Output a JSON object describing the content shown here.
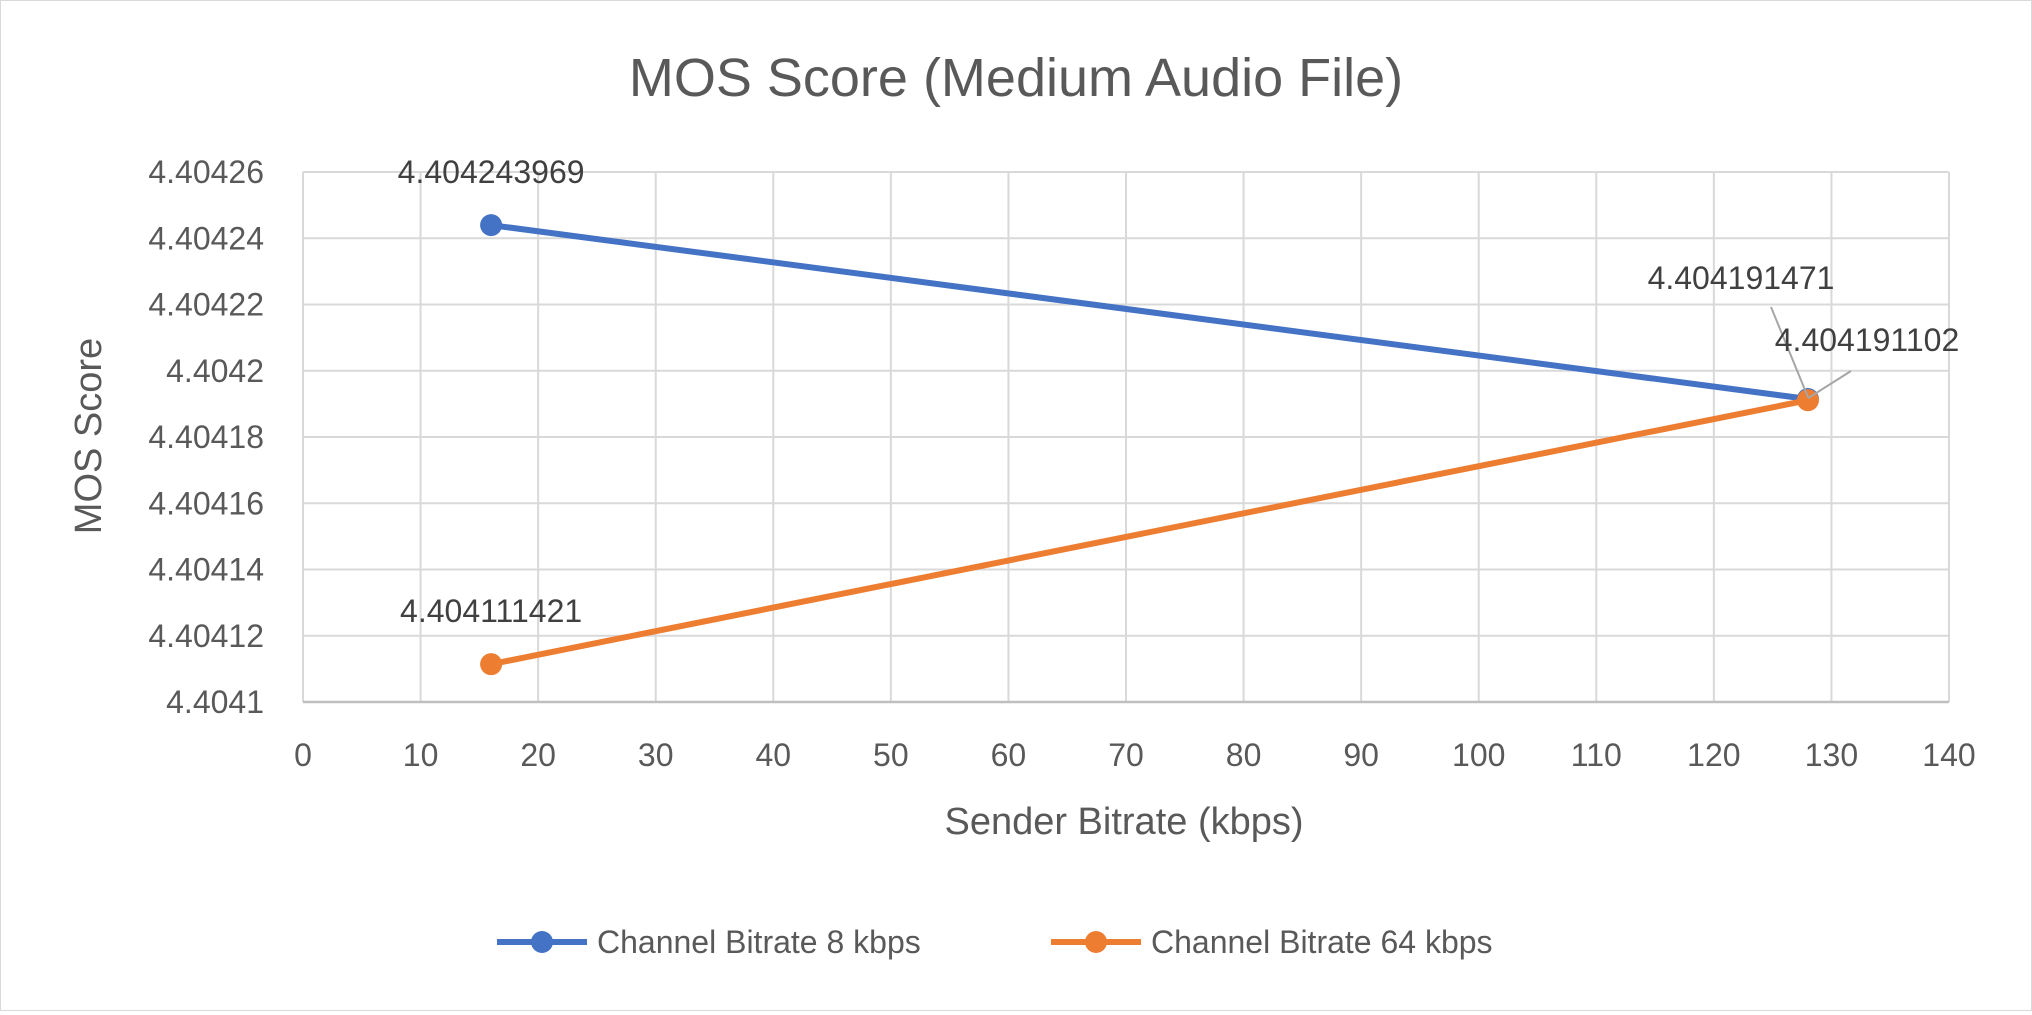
{
  "chart_data": {
    "type": "scatter",
    "title": "MOS Score (Medium Audio File)",
    "xlabel": "Sender Bitrate (kbps)",
    "ylabel": "MOS Score",
    "xlim": [
      0,
      140
    ],
    "ylim": [
      4.4041,
      4.40426
    ],
    "xticks": [
      0,
      10,
      20,
      30,
      40,
      50,
      60,
      70,
      80,
      90,
      100,
      110,
      120,
      130,
      140
    ],
    "xtick_labels": [
      "0",
      "10",
      "20",
      "30",
      "40",
      "50",
      "60",
      "70",
      "80",
      "90",
      "100",
      "110",
      "120",
      "130",
      "140"
    ],
    "yticks": [
      4.4041,
      4.40412,
      4.40414,
      4.40416,
      4.40418,
      4.4042,
      4.40422,
      4.40424,
      4.40426
    ],
    "ytick_labels": [
      "4.4041",
      "4.40412",
      "4.40414",
      "4.40416",
      "4.40418",
      "4.4042",
      "4.40422",
      "4.40424",
      "4.40426"
    ],
    "grid": true,
    "legend_position": "bottom",
    "series": [
      {
        "name": "Channel Bitrate 8 kbps",
        "color": "#4472c4",
        "x": [
          16,
          128
        ],
        "y": [
          4.404243969,
          4.404191471
        ],
        "labels": [
          "4.404243969",
          "4.404191471"
        ]
      },
      {
        "name": "Channel Bitrate 64 kbps",
        "color": "#ed7d31",
        "x": [
          16,
          128
        ],
        "y": [
          4.404111421,
          4.404191102
        ],
        "labels": [
          "4.404111421",
          "4.404191102"
        ]
      }
    ]
  }
}
